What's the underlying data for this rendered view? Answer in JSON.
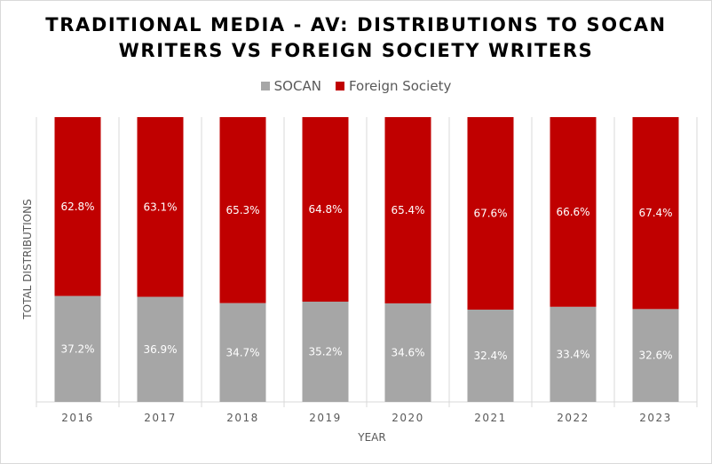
{
  "chart_data": {
    "type": "bar",
    "stacked": true,
    "percent": true,
    "title_lines": [
      "TRADITIONAL MEDIA - AV: DISTRIBUTIONS TO SOCAN",
      "WRITERS VS FOREIGN SOCIETY WRITERS"
    ],
    "xlabel": "YEAR",
    "ylabel": "TOTAL DISTRIBUTIONS",
    "ylim": [
      0,
      100
    ],
    "legend_position": "top",
    "grid": false,
    "categories": [
      "2016",
      "2017",
      "2018",
      "2019",
      "2020",
      "2021",
      "2022",
      "2023"
    ],
    "series": [
      {
        "name": "SOCAN",
        "color": "#a6a6a6",
        "values": [
          37.2,
          36.9,
          34.7,
          35.2,
          34.6,
          32.4,
          33.4,
          32.6
        ],
        "labels": [
          "37.2%",
          "36.9%",
          "34.7%",
          "35.2%",
          "34.6%",
          "32.4%",
          "33.4%",
          "32.6%"
        ]
      },
      {
        "name": "Foreign Society",
        "color": "#c00000",
        "values": [
          62.8,
          63.1,
          65.3,
          64.8,
          65.4,
          67.6,
          66.6,
          67.4
        ],
        "labels": [
          "62.8%",
          "63.1%",
          "65.3%",
          "64.8%",
          "65.4%",
          "67.6%",
          "66.6%",
          "67.4%"
        ]
      }
    ]
  }
}
